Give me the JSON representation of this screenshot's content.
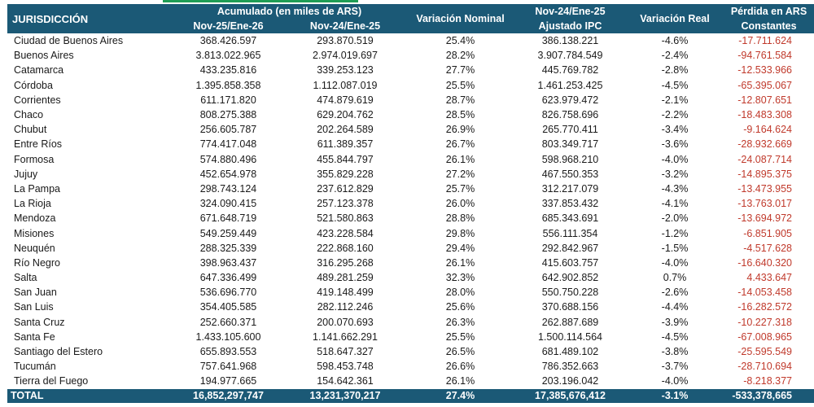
{
  "header": {
    "jurisdiccion": "JURISDICCIÓN",
    "acumulado": "Acumulado (en miles de ARS)",
    "nov25": "Nov-25/Ene-26",
    "nov24": "Nov-24/Ene-25",
    "var_nominal": "Variación Nominal",
    "ajustado_top": "Nov-24/Ene-25",
    "ajustado_bottom": "Ajustado IPC",
    "var_real": "Variación Real",
    "perdida_top": "Pérdida en ARS",
    "perdida_bottom": "Constantes"
  },
  "rows": [
    {
      "name": "Ciudad de Buenos Aires",
      "nov25": "368.426.597",
      "nov24": "293.870.519",
      "nominal": "25.4%",
      "ajustado": "386.138.221",
      "real": "-4.6%",
      "perdida": "-17.711.624"
    },
    {
      "name": "Buenos Aires",
      "nov25": "3.813.022.965",
      "nov24": "2.974.019.697",
      "nominal": "28.2%",
      "ajustado": "3.907.784.549",
      "real": "-2.4%",
      "perdida": "-94.761.584"
    },
    {
      "name": "Catamarca",
      "nov25": "433.235.816",
      "nov24": "339.253.123",
      "nominal": "27.7%",
      "ajustado": "445.769.782",
      "real": "-2.8%",
      "perdida": "-12.533.966"
    },
    {
      "name": "Córdoba",
      "nov25": "1.395.858.358",
      "nov24": "1.112.087.019",
      "nominal": "25.5%",
      "ajustado": "1.461.253.425",
      "real": "-4.5%",
      "perdida": "-65.395.067"
    },
    {
      "name": "Corrientes",
      "nov25": "611.171.820",
      "nov24": "474.879.619",
      "nominal": "28.7%",
      "ajustado": "623.979.472",
      "real": "-2.1%",
      "perdida": "-12.807.651"
    },
    {
      "name": "Chaco",
      "nov25": "808.275.388",
      "nov24": "629.204.762",
      "nominal": "28.5%",
      "ajustado": "826.758.696",
      "real": "-2.2%",
      "perdida": "-18.483.308"
    },
    {
      "name": "Chubut",
      "nov25": "256.605.787",
      "nov24": "202.264.589",
      "nominal": "26.9%",
      "ajustado": "265.770.411",
      "real": "-3.4%",
      "perdida": "-9.164.624"
    },
    {
      "name": "Entre Ríos",
      "nov25": "774.417.048",
      "nov24": "611.389.357",
      "nominal": "26.7%",
      "ajustado": "803.349.717",
      "real": "-3.6%",
      "perdida": "-28.932.669"
    },
    {
      "name": "Formosa",
      "nov25": "574.880.496",
      "nov24": "455.844.797",
      "nominal": "26.1%",
      "ajustado": "598.968.210",
      "real": "-4.0%",
      "perdida": "-24.087.714"
    },
    {
      "name": "Jujuy",
      "nov25": "452.654.978",
      "nov24": "355.829.228",
      "nominal": "27.2%",
      "ajustado": "467.550.353",
      "real": "-3.2%",
      "perdida": "-14.895.375"
    },
    {
      "name": "La Pampa",
      "nov25": "298.743.124",
      "nov24": "237.612.829",
      "nominal": "25.7%",
      "ajustado": "312.217.079",
      "real": "-4.3%",
      "perdida": "-13.473.955"
    },
    {
      "name": "La Rioja",
      "nov25": "324.090.415",
      "nov24": "257.123.378",
      "nominal": "26.0%",
      "ajustado": "337.853.432",
      "real": "-4.1%",
      "perdida": "-13.763.017"
    },
    {
      "name": "Mendoza",
      "nov25": "671.648.719",
      "nov24": "521.580.863",
      "nominal": "28.8%",
      "ajustado": "685.343.691",
      "real": "-2.0%",
      "perdida": "-13.694.972"
    },
    {
      "name": "Misiones",
      "nov25": "549.259.449",
      "nov24": "423.228.584",
      "nominal": "29.8%",
      "ajustado": "556.111.354",
      "real": "-1.2%",
      "perdida": "-6.851.905"
    },
    {
      "name": "Neuquén",
      "nov25": "288.325.339",
      "nov24": "222.868.160",
      "nominal": "29.4%",
      "ajustado": "292.842.967",
      "real": "-1.5%",
      "perdida": "-4.517.628"
    },
    {
      "name": "Río Negro",
      "nov25": "398.963.437",
      "nov24": "316.295.268",
      "nominal": "26.1%",
      "ajustado": "415.603.757",
      "real": "-4.0%",
      "perdida": "-16.640.320"
    },
    {
      "name": "Salta",
      "nov25": "647.336.499",
      "nov24": "489.281.259",
      "nominal": "32.3%",
      "ajustado": "642.902.852",
      "real": "0.7%",
      "perdida": "4.433.647"
    },
    {
      "name": "San Juan",
      "nov25": "536.696.770",
      "nov24": "419.148.499",
      "nominal": "28.0%",
      "ajustado": "550.750.228",
      "real": "-2.6%",
      "perdida": "-14.053.458"
    },
    {
      "name": "San Luis",
      "nov25": "354.405.585",
      "nov24": "282.112.246",
      "nominal": "25.6%",
      "ajustado": "370.688.156",
      "real": "-4.4%",
      "perdida": "-16.282.572"
    },
    {
      "name": "Santa Cruz",
      "nov25": "252.660.371",
      "nov24": "200.070.693",
      "nominal": "26.3%",
      "ajustado": "262.887.689",
      "real": "-3.9%",
      "perdida": "-10.227.318"
    },
    {
      "name": "Santa Fe",
      "nov25": "1.433.105.600",
      "nov24": "1.141.662.291",
      "nominal": "25.5%",
      "ajustado": "1.500.114.564",
      "real": "-4.5%",
      "perdida": "-67.008.965"
    },
    {
      "name": "Santiago del Estero",
      "nov25": "655.893.553",
      "nov24": "518.647.327",
      "nominal": "26.5%",
      "ajustado": "681.489.102",
      "real": "-3.8%",
      "perdida": "-25.595.549"
    },
    {
      "name": "Tucumán",
      "nov25": "757.641.968",
      "nov24": "598.453.748",
      "nominal": "26.6%",
      "ajustado": "786.352.663",
      "real": "-3.7%",
      "perdida": "-28.710.694"
    },
    {
      "name": "Tierra del Fuego",
      "nov25": "194.977.665",
      "nov24": "154.642.361",
      "nominal": "26.1%",
      "ajustado": "203.196.042",
      "real": "-4.0%",
      "perdida": "-8.218.377"
    }
  ],
  "total": {
    "name": "TOTAL",
    "nov25": "16,852,297,747",
    "nov24": "13,231,370,217",
    "nominal": "27.4%",
    "ajustado": "17,385,676,412",
    "real": "-3.1%",
    "perdida": "-533,378,665"
  },
  "colors": {
    "header_bg": "#1b5976",
    "loss_text": "#c0392b"
  }
}
